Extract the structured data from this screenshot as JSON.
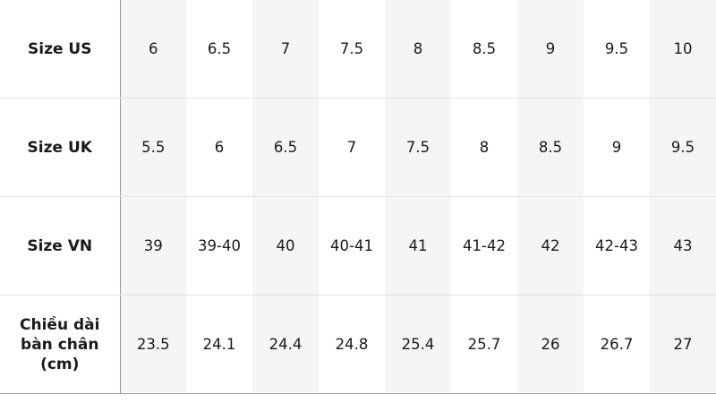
{
  "size_table": {
    "rows": [
      {
        "label": "Size US",
        "values": [
          "6",
          "6.5",
          "7",
          "7.5",
          "8",
          "8.5",
          "9",
          "9.5",
          "10"
        ]
      },
      {
        "label": "Size UK",
        "values": [
          "5.5",
          "6",
          "6.5",
          "7",
          "7.5",
          "8",
          "8.5",
          "9",
          "9.5"
        ]
      },
      {
        "label": "Size VN",
        "values": [
          "39",
          "39-40",
          "40",
          "40-41",
          "41",
          "41-42",
          "42",
          "42-43",
          "43"
        ]
      },
      {
        "label": "Chiều dài bàn chân (cm)",
        "values": [
          "23.5",
          "24.1",
          "24.4",
          "24.8",
          "25.4",
          "25.7",
          "26",
          "26.7",
          "27"
        ]
      }
    ],
    "colors": {
      "shaded_column": "#f5f5f5",
      "divider": "#9a9a9a",
      "row_line": "#e2e2e2"
    }
  }
}
